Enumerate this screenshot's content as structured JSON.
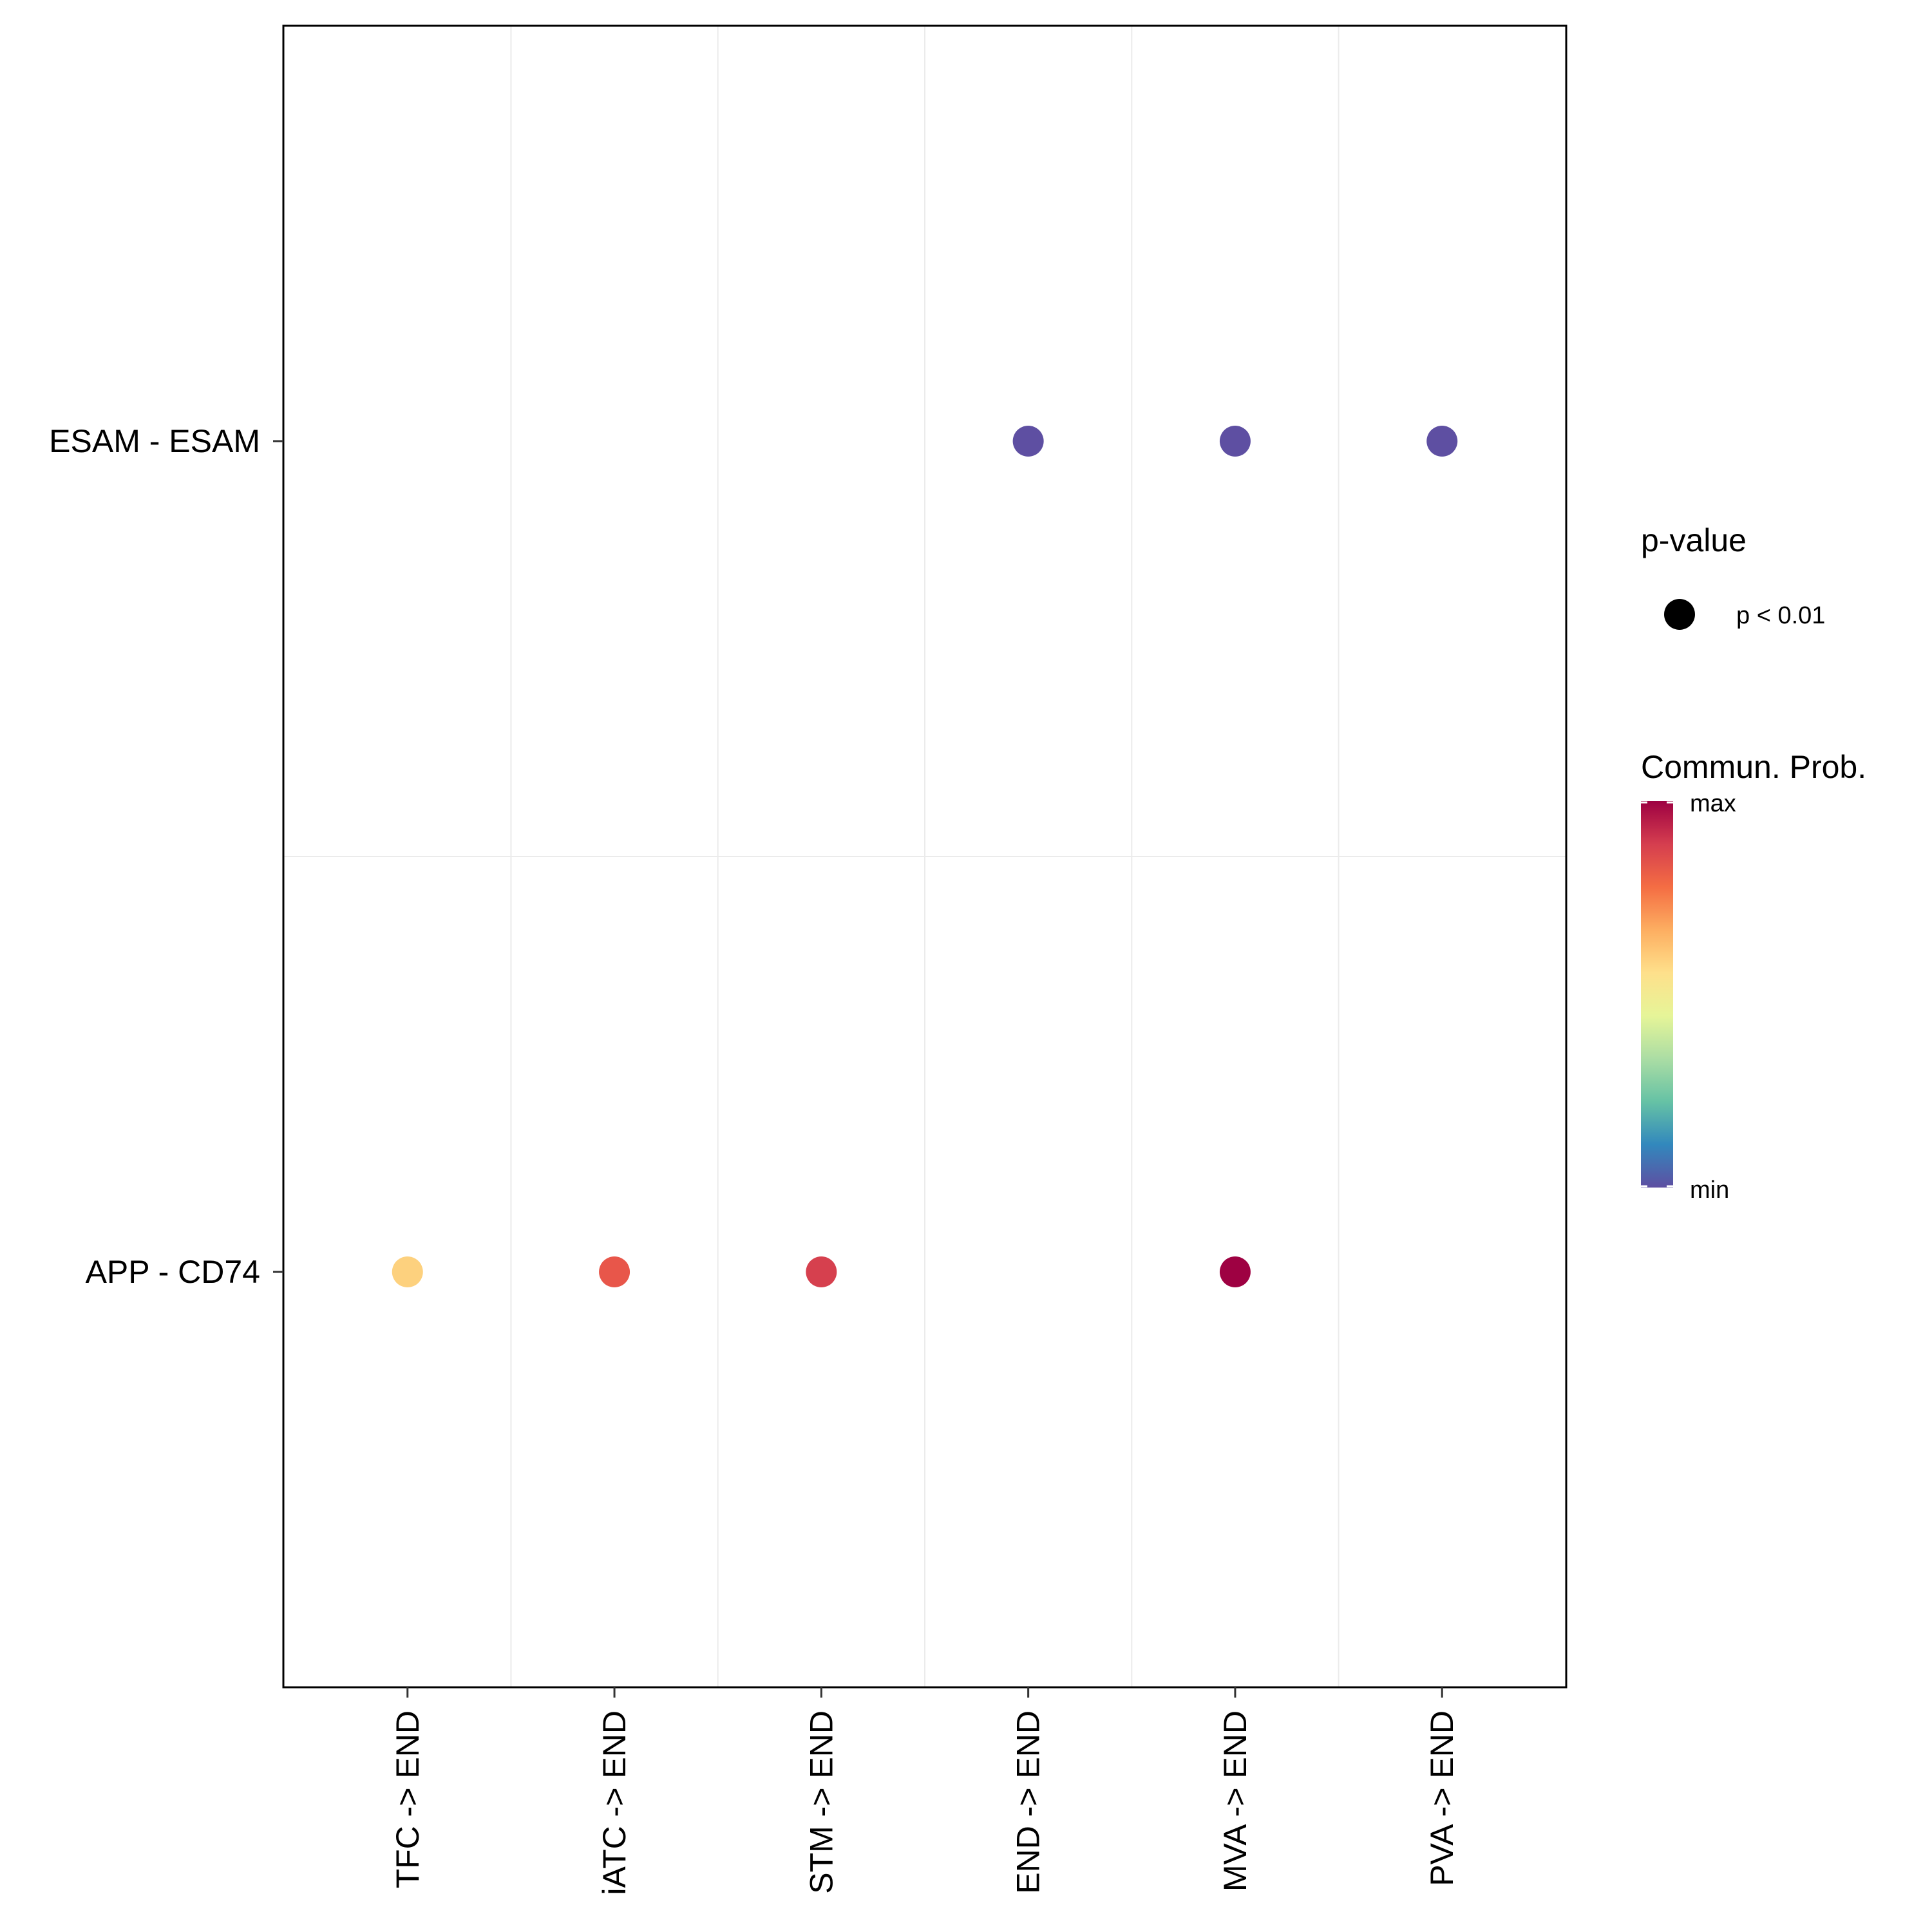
{
  "chart_data": {
    "type": "scatter",
    "x_categories": [
      "TFC -> END",
      "iATC -> END",
      "STM -> END",
      "END -> END",
      "MVA -> END",
      "PVA -> END"
    ],
    "y_categories": [
      "APP - CD74",
      "ESAM - ESAM"
    ],
    "points": [
      {
        "x": "END -> END",
        "y": "ESAM - ESAM",
        "color": "#5e4fa2"
      },
      {
        "x": "MVA -> END",
        "y": "ESAM - ESAM",
        "color": "#5e4fa2"
      },
      {
        "x": "PVA -> END",
        "y": "ESAM - ESAM",
        "color": "#5e4fa2"
      },
      {
        "x": "TFC -> END",
        "y": "APP - CD74",
        "color": "#fdd17e"
      },
      {
        "x": "iATC -> END",
        "y": "APP - CD74",
        "color": "#e8564a"
      },
      {
        "x": "STM -> END",
        "y": "APP - CD74",
        "color": "#d6404e"
      },
      {
        "x": "MVA -> END",
        "y": "APP - CD74",
        "color": "#9e0142"
      }
    ],
    "grid": true,
    "legend": {
      "placement": "right",
      "size_legend": {
        "title": "p-value",
        "entries": [
          "p < 0.01"
        ]
      },
      "color_legend": {
        "title": "Commun. Prob.",
        "max_label": "max",
        "min_label": "min",
        "palette": [
          "#9e0142",
          "#d53e4f",
          "#f46d43",
          "#fdae61",
          "#fee08b",
          "#e6f598",
          "#abdda4",
          "#66c2a5",
          "#3288bd",
          "#5e4fa2"
        ]
      }
    }
  }
}
